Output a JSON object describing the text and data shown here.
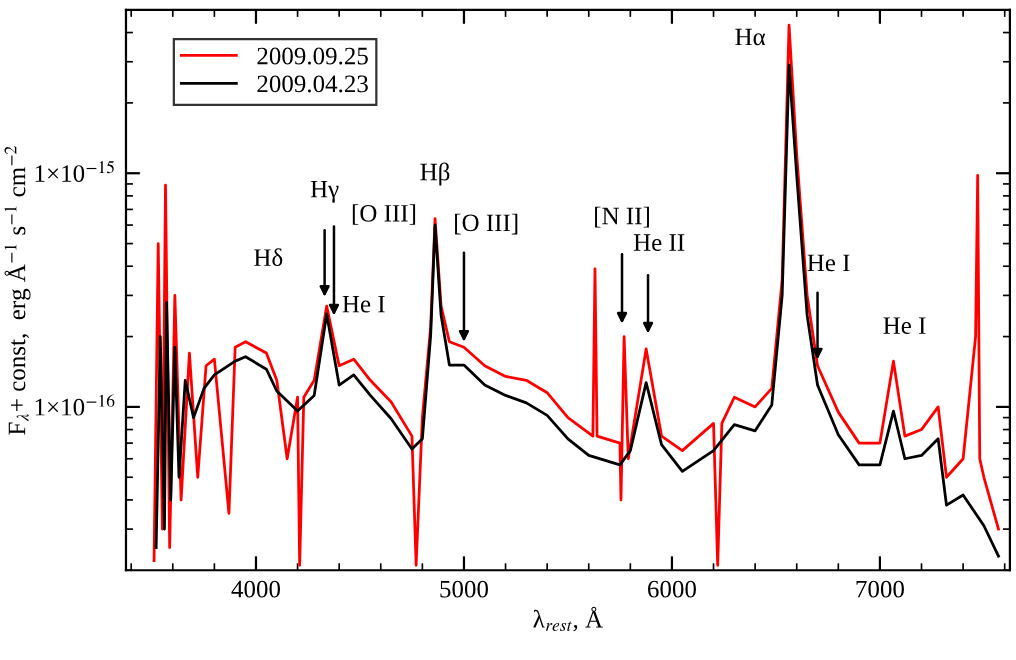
{
  "chart_data": {
    "type": "line",
    "xlabel": "λ$_{rest}$, Å",
    "ylabel": "F$_{λ}$+ const,  erg Å$^{−1}$ s$^{−1}$ cm$^{−2}$",
    "log": "y",
    "xlim": [
      3375,
      7625
    ],
    "ylim": [
      2e-17,
      5e-15
    ],
    "xticks": [
      4000,
      5000,
      6000,
      7000
    ],
    "yticks": [
      {
        "value": 1e-16,
        "label": "1×10$^{−16}$"
      },
      {
        "value": 1e-15,
        "label": "1×10$^{−15}$"
      }
    ],
    "legend": "top left",
    "grid": false,
    "line_style": "solid",
    "marker": "none",
    "series": [
      {
        "name": "2009.09.25",
        "color": "#ff0000",
        "x": [
          3510,
          3530,
          3550,
          3565,
          3585,
          3610,
          3640,
          3680,
          3720,
          3760,
          3800,
          3870,
          3900,
          3950,
          4050,
          4100,
          4150,
          4200,
          4210,
          4230,
          4280,
          4340,
          4400,
          4470,
          4550,
          4650,
          4750,
          4770,
          4800,
          4840,
          4861,
          4890,
          4930,
          5000,
          5100,
          5200,
          5300,
          5400,
          5500,
          5620,
          5630,
          5640,
          5750,
          5755,
          5770,
          5790,
          5876,
          5950,
          6050,
          6200,
          6220,
          6240,
          6300,
          6400,
          6480,
          6530,
          6563,
          6600,
          6650,
          6700,
          6800,
          6900,
          7000,
          7065,
          7120,
          7200,
          7280,
          7320,
          7400,
          7460,
          7470,
          7480,
          7500,
          7570
        ],
        "values": [
          2.2e-17,
          5e-16,
          3e-17,
          8.9e-16,
          2.5e-17,
          3e-16,
          4e-17,
          1.7e-16,
          5e-17,
          1.5e-16,
          1.6e-16,
          3.5e-17,
          1.8e-16,
          1.9e-16,
          1.7e-16,
          1.3e-16,
          6e-17,
          1.1e-16,
          2.1e-17,
          1.1e-16,
          1.3e-16,
          2.7e-16,
          1.5e-16,
          1.6e-16,
          1.3e-16,
          1.05e-16,
          7.5e-17,
          2.1e-17,
          9e-17,
          2.2e-16,
          6.4e-16,
          2.7e-16,
          1.9e-16,
          1.8e-16,
          1.5e-16,
          1.35e-16,
          1.3e-16,
          1.15e-16,
          9e-17,
          7.5e-17,
          3.9e-16,
          7.5e-17,
          7e-17,
          4e-17,
          2e-16,
          6e-17,
          1.77e-16,
          7.5e-17,
          6.5e-17,
          8.5e-17,
          2.1e-17,
          8.5e-17,
          1.1e-16,
          1e-16,
          1.2e-16,
          3.5e-16,
          4.3e-15,
          1.2e-15,
          3e-16,
          1.5e-16,
          9.5e-17,
          7e-17,
          7e-17,
          1.57e-16,
          7.5e-17,
          8e-17,
          1e-16,
          5e-17,
          6e-17,
          2e-16,
          9.8e-16,
          6e-17,
          5e-17,
          3e-17
        ]
      },
      {
        "name": "2009.04.23",
        "color": "#000000",
        "x": [
          3520,
          3540,
          3560,
          3570,
          3590,
          3610,
          3630,
          3660,
          3700,
          3750,
          3800,
          3900,
          3950,
          4050,
          4100,
          4200,
          4280,
          4340,
          4400,
          4470,
          4550,
          4650,
          4750,
          4800,
          4840,
          4861,
          4890,
          4930,
          5000,
          5100,
          5200,
          5300,
          5400,
          5500,
          5600,
          5750,
          5800,
          5876,
          5950,
          6050,
          6200,
          6300,
          6400,
          6480,
          6530,
          6563,
          6600,
          6650,
          6700,
          6800,
          6900,
          7000,
          7065,
          7120,
          7200,
          7280,
          7320,
          7400,
          7500,
          7570
        ],
        "values": [
          2.5e-17,
          2e-16,
          3e-17,
          2.8e-16,
          4e-17,
          1.8e-16,
          5e-17,
          1.3e-16,
          9e-17,
          1.2e-16,
          1.37e-16,
          1.57e-16,
          1.64e-16,
          1.45e-16,
          1.17e-16,
          9.6e-17,
          1.12e-16,
          2.5e-16,
          1.24e-16,
          1.37e-16,
          1.12e-16,
          8.9e-17,
          6.6e-17,
          7.3e-17,
          2.03e-16,
          6e-16,
          2.47e-16,
          1.51e-16,
          1.51e-16,
          1.24e-16,
          1.12e-16,
          1.04e-16,
          9.2e-17,
          7.3e-17,
          6.2e-17,
          5.65e-17,
          6.5e-17,
          1.27e-16,
          6.9e-17,
          5.3e-17,
          6.5e-17,
          8.4e-17,
          7.9e-17,
          1.02e-16,
          3e-16,
          2.9e-15,
          9.8e-16,
          2.47e-16,
          1.24e-16,
          7.6e-17,
          5.65e-17,
          5.65e-17,
          9.6e-17,
          6e-17,
          6.2e-17,
          7.3e-17,
          3.8e-17,
          4.2e-17,
          3.1e-17,
          2.3e-17
        ]
      }
    ],
    "annotations": [
      "Hδ",
      {
        "text": "Hγ",
        "x": 4330,
        "y": 2.8e-16
      },
      {
        "text": "[O III]",
        "x": 4375,
        "y": 2.33e-16
      },
      "He I",
      {
        "text": "Hβ",
        "x": 4861,
        "y": 6.4e-16
      },
      {
        "text": "[O III]",
        "x": 5000,
        "y": 1.8e-16
      },
      {
        "text": "[N II]",
        "x": 5760,
        "y": 2.15e-16
      },
      {
        "text": "He II",
        "x": 5885,
        "y": 1.95e-16
      },
      {
        "text": "Hα",
        "x": 6563,
        "y": 4.3e-15
      },
      {
        "text": "He I",
        "x": 6700,
        "y": 1.51e-16
      },
      {
        "text": "He I",
        "x": 7065,
        "y": 1.57e-16
      }
    ]
  }
}
